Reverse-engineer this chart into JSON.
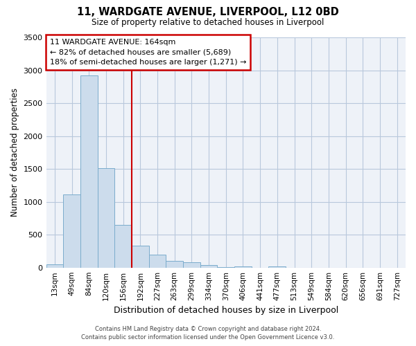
{
  "title": "11, WARDGATE AVENUE, LIVERPOOL, L12 0BD",
  "subtitle": "Size of property relative to detached houses in Liverpool",
  "xlabel": "Distribution of detached houses by size in Liverpool",
  "ylabel": "Number of detached properties",
  "bar_color": "#ccdcec",
  "bar_edge_color": "#7aaccc",
  "bg_color": "#eef2f8",
  "annotation_box_color": "#cc0000",
  "vline_color": "#cc0000",
  "bin_labels": [
    "13sqm",
    "49sqm",
    "84sqm",
    "120sqm",
    "156sqm",
    "192sqm",
    "227sqm",
    "263sqm",
    "299sqm",
    "334sqm",
    "370sqm",
    "406sqm",
    "441sqm",
    "477sqm",
    "513sqm",
    "549sqm",
    "584sqm",
    "620sqm",
    "656sqm",
    "691sqm",
    "727sqm"
  ],
  "bar_values": [
    50,
    1110,
    2920,
    1510,
    650,
    335,
    200,
    100,
    85,
    35,
    5,
    20,
    0,
    20,
    0,
    0,
    0,
    0,
    0,
    0,
    0
  ],
  "ylim": [
    0,
    3500
  ],
  "annotation_title": "11 WARDGATE AVENUE: 164sqm",
  "annotation_line1": "← 82% of detached houses are smaller (5,689)",
  "annotation_line2": "18% of semi-detached houses are larger (1,271) →",
  "footer_line1": "Contains HM Land Registry data © Crown copyright and database right 2024.",
  "footer_line2": "Contains public sector information licensed under the Open Government Licence v3.0.",
  "vline_position": 4.5
}
